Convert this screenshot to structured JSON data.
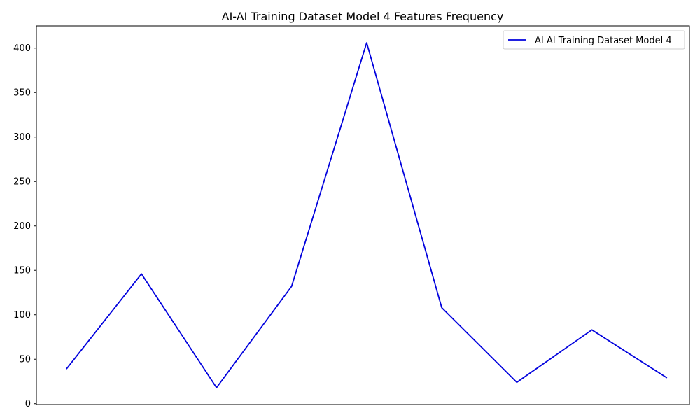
{
  "chart_data": {
    "type": "line",
    "title": "AI-AI Training Dataset Model 4 Features Frequency",
    "xlabel": "",
    "ylabel": "",
    "x": [
      0,
      1,
      2,
      3,
      4,
      5,
      6,
      7,
      8
    ],
    "xlim": [
      -0.4,
      8.3
    ],
    "ylim": [
      -1,
      425
    ],
    "yticks": [
      0,
      50,
      100,
      150,
      200,
      250,
      300,
      350,
      400
    ],
    "yticks_labels": [
      "0",
      "50",
      "100",
      "150",
      "200",
      "250",
      "300",
      "350",
      "400"
    ],
    "x_ticks_shown": false,
    "grid": false,
    "legend_position": "top-right",
    "series": [
      {
        "name": "AI AI Training Dataset Model 4",
        "color": "#0000dd",
        "values": [
          39,
          146,
          18,
          132,
          406,
          108,
          24,
          83,
          29
        ]
      }
    ]
  }
}
